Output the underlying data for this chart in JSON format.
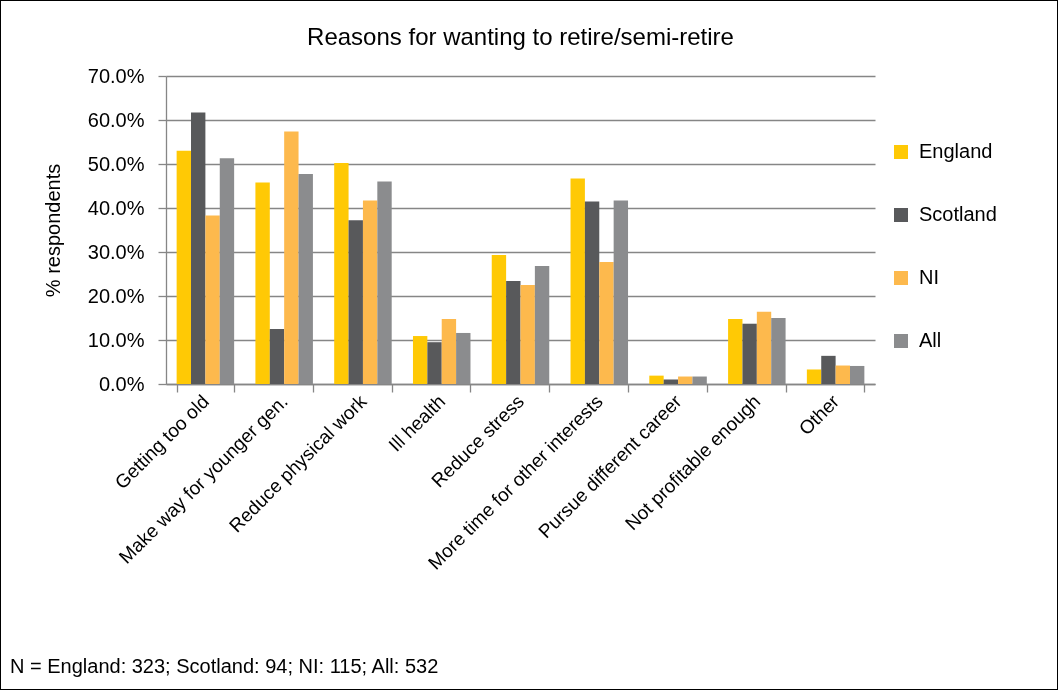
{
  "chart_data": {
    "type": "bar",
    "title": "Reasons for wanting to retire/semi-retire",
    "ylabel": "% respondents",
    "categories": [
      "Getting too old",
      "Make way for younger gen.",
      "Reduce physical work",
      "Ill health",
      "Reduce stress",
      "More time for other interests",
      "Pursue different career",
      "Not profitable enough",
      "Other"
    ],
    "series": [
      {
        "name": "England",
        "color": "#ffc905",
        "values": [
          53.0,
          45.8,
          50.2,
          10.9,
          29.3,
          46.7,
          1.9,
          14.8,
          3.3
        ]
      },
      {
        "name": "Scotland",
        "color": "#58595b",
        "values": [
          61.7,
          12.5,
          37.2,
          9.5,
          23.4,
          41.5,
          1.0,
          13.7,
          6.4
        ]
      },
      {
        "name": "NI",
        "color": "#fdb94d",
        "values": [
          38.3,
          57.4,
          41.7,
          14.8,
          22.5,
          27.7,
          1.7,
          16.4,
          4.2
        ]
      },
      {
        "name": "All",
        "color": "#8b8c8e",
        "values": [
          51.3,
          47.7,
          46.0,
          11.6,
          26.8,
          41.7,
          1.7,
          15.0,
          4.1
        ]
      }
    ],
    "ylim": [
      0,
      70
    ],
    "yticks": [
      {
        "value": 0,
        "label": "0.0%"
      },
      {
        "value": 10,
        "label": "10.0%"
      },
      {
        "value": 20,
        "label": "20.0%"
      },
      {
        "value": 30,
        "label": "30.0%"
      },
      {
        "value": 40,
        "label": "40.0%"
      },
      {
        "value": 50,
        "label": "50.0%"
      },
      {
        "value": 60,
        "label": "60.0%"
      },
      {
        "value": 70,
        "label": "70.0%"
      }
    ],
    "grid": "y",
    "legend": "right",
    "annotations": [
      "N = England: 323; Scotland: 94; NI: 115; All: 532"
    ]
  }
}
